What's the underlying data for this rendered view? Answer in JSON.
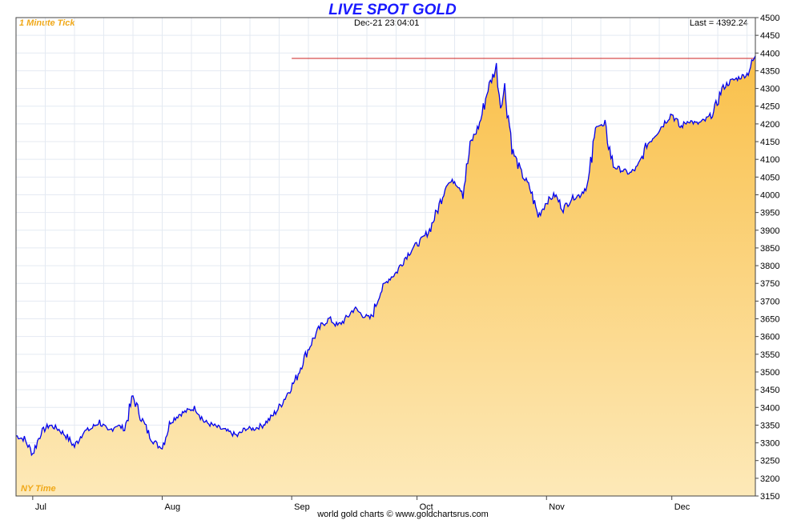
{
  "header": {
    "title": "LIVE SPOT GOLD",
    "timestamp": "Dec-21  23:04:01",
    "last_label": "Last = 4392.24",
    "tick_label": "1 Minute Tick",
    "timezone_label": "NY Time"
  },
  "footer": {
    "text": "world gold charts © www.goldchartsrus.com"
  },
  "colors": {
    "title": "#1a1aff",
    "line": "#0000ee",
    "fill_top": "#f9c04a",
    "fill_bottom": "#fde9b8",
    "reference_line": "#cc2222",
    "annotation": "#f0a818",
    "grid": "#e4eaf2"
  },
  "chart_data": {
    "type": "area",
    "title": "LIVE SPOT GOLD",
    "xlabel": "",
    "ylabel": "",
    "x_ticks": [
      "Jul",
      "Aug",
      "Sep",
      "Oct",
      "Nov",
      "Dec"
    ],
    "x_tick_dates": [
      "2025-07-01",
      "2025-08-01",
      "2025-09-01",
      "2025-10-01",
      "2025-11-01",
      "2025-12-01"
    ],
    "xlim": [
      "2025-06-27",
      "2025-12-21"
    ],
    "ylim": [
      3150,
      4500
    ],
    "y_ticks": [
      3150,
      3200,
      3250,
      3300,
      3350,
      3400,
      3450,
      3500,
      3550,
      3600,
      3650,
      3700,
      3750,
      3800,
      3850,
      3900,
      3950,
      4000,
      4050,
      4100,
      4150,
      4200,
      4250,
      4300,
      4350,
      4400,
      4450,
      4500
    ],
    "y_axis_position": "right",
    "grid": true,
    "reference_line": {
      "value": 4385,
      "x_start": "2025-09-01",
      "x_end": "2025-12-21"
    },
    "series": [
      {
        "x": [
          "2025-06-27",
          "2025-06-29",
          "2025-07-01",
          "2025-07-03",
          "2025-07-05",
          "2025-07-07",
          "2025-07-09",
          "2025-07-11",
          "2025-07-13",
          "2025-07-15",
          "2025-07-17",
          "2025-07-19",
          "2025-07-21",
          "2025-07-23",
          "2025-07-25",
          "2025-07-27",
          "2025-07-29",
          "2025-07-31",
          "2025-08-01",
          "2025-08-03",
          "2025-08-05",
          "2025-08-07",
          "2025-08-09",
          "2025-08-11",
          "2025-08-13",
          "2025-08-15",
          "2025-08-17",
          "2025-08-19",
          "2025-08-21",
          "2025-08-23",
          "2025-08-25",
          "2025-08-27",
          "2025-08-29",
          "2025-08-31",
          "2025-09-02",
          "2025-09-04",
          "2025-09-06",
          "2025-09-08",
          "2025-09-10",
          "2025-09-12",
          "2025-09-14",
          "2025-09-16",
          "2025-09-18",
          "2025-09-20",
          "2025-09-22",
          "2025-09-24",
          "2025-09-26",
          "2025-09-28",
          "2025-09-30",
          "2025-10-02",
          "2025-10-04",
          "2025-10-06",
          "2025-10-08",
          "2025-10-10",
          "2025-10-12",
          "2025-10-14",
          "2025-10-16",
          "2025-10-18",
          "2025-10-20",
          "2025-10-21",
          "2025-10-22",
          "2025-10-24",
          "2025-10-26",
          "2025-10-28",
          "2025-10-30",
          "2025-11-01",
          "2025-11-03",
          "2025-11-05",
          "2025-11-07",
          "2025-11-09",
          "2025-11-11",
          "2025-11-13",
          "2025-11-15",
          "2025-11-17",
          "2025-11-19",
          "2025-11-21",
          "2025-11-23",
          "2025-11-25",
          "2025-11-27",
          "2025-11-29",
          "2025-12-01",
          "2025-12-03",
          "2025-12-05",
          "2025-12-07",
          "2025-12-09",
          "2025-12-11",
          "2025-12-13",
          "2025-12-15",
          "2025-12-17",
          "2025-12-19",
          "2025-12-21"
        ],
        "values": [
          3320,
          3310,
          3270,
          3330,
          3350,
          3340,
          3320,
          3290,
          3330,
          3340,
          3360,
          3330,
          3350,
          3340,
          3430,
          3370,
          3320,
          3290,
          3290,
          3360,
          3380,
          3390,
          3400,
          3360,
          3350,
          3340,
          3330,
          3320,
          3340,
          3340,
          3350,
          3370,
          3400,
          3440,
          3480,
          3540,
          3590,
          3630,
          3650,
          3630,
          3650,
          3680,
          3660,
          3650,
          3720,
          3760,
          3780,
          3820,
          3850,
          3870,
          3900,
          3960,
          4030,
          4040,
          4010,
          4150,
          4200,
          4300,
          4360,
          4250,
          4300,
          4120,
          4060,
          4020,
          3940,
          3980,
          4000,
          3960,
          3990,
          4000,
          4030,
          4200,
          4190,
          4080,
          4070,
          4060,
          4080,
          4140,
          4170,
          4200,
          4230,
          4190,
          4210,
          4200,
          4210,
          4230,
          4300,
          4320,
          4330,
          4340,
          4392
        ]
      }
    ]
  }
}
